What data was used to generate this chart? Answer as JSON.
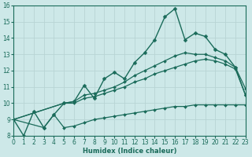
{
  "xlabel": "Humidex (Indice chaleur)",
  "bg_color": "#cde8e8",
  "grid_color": "#b8d4d4",
  "line_color": "#1a6b5a",
  "xlim": [
    0,
    23
  ],
  "ylim": [
    8,
    16
  ],
  "xticks": [
    0,
    1,
    2,
    3,
    4,
    5,
    6,
    7,
    8,
    9,
    10,
    11,
    12,
    13,
    14,
    15,
    16,
    17,
    18,
    19,
    20,
    21,
    22,
    23
  ],
  "yticks": [
    8,
    9,
    10,
    11,
    12,
    13,
    14,
    15,
    16
  ],
  "series": [
    {
      "x": [
        0,
        1,
        2,
        3,
        4,
        5,
        6,
        7,
        8,
        9,
        10,
        11,
        12,
        13,
        14,
        15,
        16,
        17,
        18,
        19,
        20,
        21,
        22,
        23
      ],
      "y": [
        9.0,
        8.0,
        9.5,
        8.5,
        9.3,
        10.0,
        10.1,
        11.1,
        10.3,
        11.5,
        11.9,
        11.5,
        12.5,
        13.1,
        13.9,
        15.3,
        15.8,
        13.9,
        14.3,
        14.1,
        13.3,
        13.0,
        12.2,
        10.5
      ],
      "marker": "D",
      "markersize": 2.5,
      "lw": 1.0
    },
    {
      "x": [
        0,
        5,
        6,
        7,
        8,
        9,
        10,
        11,
        12,
        13,
        14,
        15,
        16,
        17,
        18,
        19,
        20,
        21,
        22,
        23
      ],
      "y": [
        9.0,
        10.0,
        10.1,
        10.5,
        10.6,
        10.8,
        11.0,
        11.3,
        11.7,
        12.0,
        12.3,
        12.6,
        12.9,
        13.1,
        13.0,
        13.0,
        12.8,
        12.6,
        12.2,
        10.9
      ],
      "marker": "D",
      "markersize": 2.0,
      "lw": 0.9
    },
    {
      "x": [
        0,
        5,
        6,
        7,
        8,
        9,
        10,
        11,
        12,
        13,
        14,
        15,
        16,
        17,
        18,
        19,
        20,
        21,
        22,
        23
      ],
      "y": [
        9.0,
        10.0,
        10.0,
        10.3,
        10.4,
        10.6,
        10.8,
        11.0,
        11.3,
        11.5,
        11.8,
        12.0,
        12.2,
        12.4,
        12.6,
        12.7,
        12.6,
        12.4,
        12.1,
        10.5
      ],
      "marker": "D",
      "markersize": 2.0,
      "lw": 0.9
    },
    {
      "x": [
        0,
        3,
        4,
        5,
        6,
        7,
        8,
        9,
        10,
        11,
        12,
        13,
        14,
        15,
        16,
        17,
        18,
        19,
        20,
        21,
        22,
        23
      ],
      "y": [
        9.0,
        8.5,
        9.3,
        8.5,
        8.6,
        8.8,
        9.0,
        9.1,
        9.2,
        9.3,
        9.4,
        9.5,
        9.6,
        9.7,
        9.8,
        9.8,
        9.9,
        9.9,
        9.9,
        9.9,
        9.9,
        9.9
      ],
      "marker": "D",
      "markersize": 2.0,
      "lw": 0.9
    }
  ]
}
